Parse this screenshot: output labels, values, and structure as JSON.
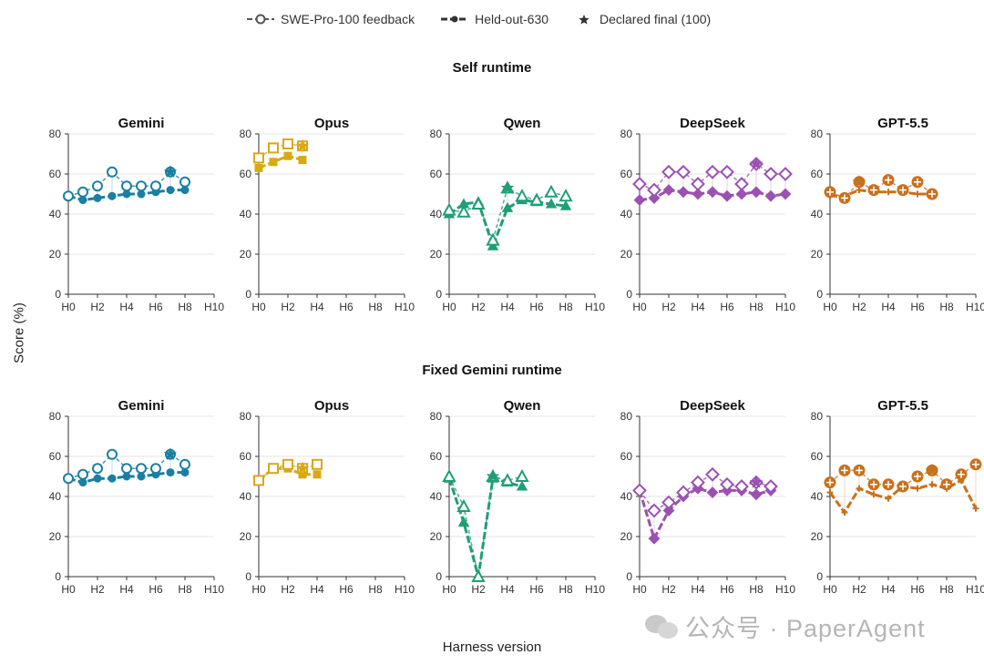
{
  "legend": {
    "feedback": "SWE-Pro-100 feedback",
    "heldout": "Held-out-630",
    "declared": "Declared final (100)"
  },
  "axes": {
    "ylabel": "Score (%)",
    "xlabel": "Harness version"
  },
  "watermark": "公众号 · PaperAgent",
  "colors": {
    "Gemini": "#1a7fa3",
    "Opus": "#d9a817",
    "Qwen": "#1f9e78",
    "DeepSeek": "#9b51b0",
    "GPT-5.5": "#c9701c"
  },
  "chart_data": [
    {
      "type": "line",
      "panel_group": "Self runtime",
      "title": "Gemini",
      "x": [
        "H0",
        "H1",
        "H2",
        "H3",
        "H4",
        "H5",
        "H6",
        "H7",
        "H8"
      ],
      "xticks": [
        "H0",
        "H2",
        "H4",
        "H6",
        "H8",
        "H10"
      ],
      "xlim": [
        0,
        10
      ],
      "ylim": [
        0,
        80
      ],
      "yticks": [
        0,
        20,
        40,
        60,
        80
      ],
      "series": [
        {
          "name": "SWE-Pro-100 feedback",
          "values": [
            49,
            51,
            54,
            61,
            54,
            54,
            54,
            61,
            56
          ]
        },
        {
          "name": "Held-out-630",
          "values": [
            49,
            47,
            48,
            49,
            50,
            50,
            51,
            52,
            52
          ]
        }
      ],
      "declared_final": {
        "x": "H7",
        "y": 61
      }
    },
    {
      "type": "line",
      "panel_group": "Self runtime",
      "title": "Opus",
      "x": [
        "H0",
        "H1",
        "H2",
        "H3"
      ],
      "xticks": [
        "H0",
        "H2",
        "H4",
        "H6",
        "H8",
        "H10"
      ],
      "xlim": [
        0,
        10
      ],
      "ylim": [
        0,
        80
      ],
      "yticks": [
        0,
        20,
        40,
        60,
        80
      ],
      "series": [
        {
          "name": "SWE-Pro-100 feedback",
          "values": [
            68,
            73,
            75,
            74
          ]
        },
        {
          "name": "Held-out-630",
          "values": [
            63,
            66,
            69,
            67
          ]
        }
      ],
      "declared_final": {
        "x": "H3",
        "y": 74
      }
    },
    {
      "type": "line",
      "panel_group": "Self runtime",
      "title": "Qwen",
      "x": [
        "H0",
        "H1",
        "H2",
        "H3",
        "H4",
        "H5",
        "H6",
        "H7",
        "H8"
      ],
      "xticks": [
        "H0",
        "H2",
        "H4",
        "H6",
        "H8",
        "H10"
      ],
      "xlim": [
        0,
        10
      ],
      "ylim": [
        0,
        80
      ],
      "yticks": [
        0,
        20,
        40,
        60,
        80
      ],
      "series": [
        {
          "name": "SWE-Pro-100 feedback",
          "values": [
            42,
            41,
            45,
            27,
            53,
            49,
            47,
            51,
            49
          ]
        },
        {
          "name": "Held-out-630",
          "values": [
            40,
            45,
            46,
            24,
            43,
            47,
            46,
            45,
            44
          ]
        }
      ],
      "declared_final": {
        "x": "H4",
        "y": 53
      }
    },
    {
      "type": "line",
      "panel_group": "Self runtime",
      "title": "DeepSeek",
      "x": [
        "H0",
        "H1",
        "H2",
        "H3",
        "H4",
        "H5",
        "H6",
        "H7",
        "H8",
        "H9",
        "H10"
      ],
      "xticks": [
        "H0",
        "H2",
        "H4",
        "H6",
        "H8",
        "H10"
      ],
      "xlim": [
        0,
        10
      ],
      "ylim": [
        0,
        80
      ],
      "yticks": [
        0,
        20,
        40,
        60,
        80
      ],
      "series": [
        {
          "name": "SWE-Pro-100 feedback",
          "values": [
            55,
            52,
            61,
            61,
            55,
            61,
            61,
            55,
            65,
            60,
            60
          ]
        },
        {
          "name": "Held-out-630",
          "values": [
            47,
            48,
            52,
            51,
            50,
            51,
            49,
            50,
            51,
            49,
            50
          ]
        }
      ],
      "declared_final": {
        "x": "H8",
        "y": 65
      }
    },
    {
      "type": "line",
      "panel_group": "Self runtime",
      "title": "GPT-5.5",
      "x": [
        "H0",
        "H1",
        "H2",
        "H3",
        "H4",
        "H5",
        "H6",
        "H7"
      ],
      "xticks": [
        "H0",
        "H2",
        "H4",
        "H6",
        "H8",
        "H10"
      ],
      "xlim": [
        0,
        10
      ],
      "ylim": [
        0,
        80
      ],
      "yticks": [
        0,
        20,
        40,
        60,
        80
      ],
      "series": [
        {
          "name": "SWE-Pro-100 feedback",
          "values": [
            51,
            48,
            56,
            52,
            57,
            52,
            56,
            50
          ]
        },
        {
          "name": "Held-out-630",
          "values": [
            49,
            49,
            52,
            51,
            51,
            51,
            50,
            50
          ]
        }
      ],
      "declared_final": {
        "x": "H2",
        "y": 56
      }
    },
    {
      "type": "line",
      "panel_group": "Fixed Gemini runtime",
      "title": "Gemini",
      "x": [
        "H0",
        "H1",
        "H2",
        "H3",
        "H4",
        "H5",
        "H6",
        "H7",
        "H8"
      ],
      "xticks": [
        "H0",
        "H2",
        "H4",
        "H6",
        "H8",
        "H10"
      ],
      "xlim": [
        0,
        10
      ],
      "ylim": [
        0,
        80
      ],
      "yticks": [
        0,
        20,
        40,
        60,
        80
      ],
      "series": [
        {
          "name": "SWE-Pro-100 feedback",
          "values": [
            49,
            51,
            54,
            61,
            54,
            54,
            54,
            61,
            56
          ]
        },
        {
          "name": "Held-out-630",
          "values": [
            49,
            47,
            49,
            49,
            50,
            50,
            51,
            52,
            52
          ]
        }
      ],
      "declared_final": {
        "x": "H7",
        "y": 61
      }
    },
    {
      "type": "line",
      "panel_group": "Fixed Gemini runtime",
      "title": "Opus",
      "x": [
        "H0",
        "H1",
        "H2",
        "H3",
        "H4"
      ],
      "xticks": [
        "H0",
        "H2",
        "H4",
        "H6",
        "H8",
        "H10"
      ],
      "xlim": [
        0,
        10
      ],
      "ylim": [
        0,
        80
      ],
      "yticks": [
        0,
        20,
        40,
        60,
        80
      ],
      "series": [
        {
          "name": "SWE-Pro-100 feedback",
          "values": [
            48,
            54,
            56,
            54,
            56
          ]
        },
        {
          "name": "Held-out-630",
          "values": [
            48,
            54,
            54,
            51,
            51
          ]
        }
      ],
      "declared_final": {
        "x": "H3",
        "y": 54
      }
    },
    {
      "type": "line",
      "panel_group": "Fixed Gemini runtime",
      "title": "Qwen",
      "x": [
        "H0",
        "H1",
        "H2",
        "H3",
        "H4",
        "H5"
      ],
      "xticks": [
        "H0",
        "H2",
        "H4",
        "H6",
        "H8",
        "H10"
      ],
      "xlim": [
        0,
        10
      ],
      "ylim": [
        0,
        80
      ],
      "yticks": [
        0,
        20,
        40,
        60,
        80
      ],
      "series": [
        {
          "name": "SWE-Pro-100 feedback",
          "values": [
            50,
            35,
            0,
            50,
            48,
            50
          ]
        },
        {
          "name": "Held-out-630",
          "values": [
            49,
            27,
            0,
            49,
            47,
            45
          ]
        }
      ],
      "declared_final": {
        "x": "H3",
        "y": 50
      }
    },
    {
      "type": "line",
      "panel_group": "Fixed Gemini runtime",
      "title": "DeepSeek",
      "x": [
        "H0",
        "H1",
        "H2",
        "H3",
        "H4",
        "H5",
        "H6",
        "H7",
        "H8",
        "H9"
      ],
      "xticks": [
        "H0",
        "H2",
        "H4",
        "H6",
        "H8",
        "H10"
      ],
      "xlim": [
        0,
        10
      ],
      "ylim": [
        0,
        80
      ],
      "yticks": [
        0,
        20,
        40,
        60,
        80
      ],
      "series": [
        {
          "name": "SWE-Pro-100 feedback",
          "values": [
            43,
            33,
            37,
            42,
            47,
            51,
            46,
            45,
            47,
            45
          ]
        },
        {
          "name": "Held-out-630",
          "values": [
            43,
            19,
            33,
            40,
            44,
            42,
            43,
            43,
            41,
            43
          ]
        }
      ],
      "declared_final": {
        "x": "H8",
        "y": 47
      }
    },
    {
      "type": "line",
      "panel_group": "Fixed Gemini runtime",
      "title": "GPT-5.5",
      "x": [
        "H0",
        "H1",
        "H2",
        "H3",
        "H4",
        "H5",
        "H6",
        "H7",
        "H8",
        "H9",
        "H10"
      ],
      "xticks": [
        "H0",
        "H2",
        "H4",
        "H6",
        "H8",
        "H10"
      ],
      "xlim": [
        0,
        10
      ],
      "ylim": [
        0,
        80
      ],
      "yticks": [
        0,
        20,
        40,
        60,
        80
      ],
      "series": [
        {
          "name": "SWE-Pro-100 feedback",
          "values": [
            47,
            53,
            53,
            46,
            46,
            45,
            50,
            53,
            46,
            51,
            56
          ]
        },
        {
          "name": "Held-out-630",
          "values": [
            42,
            32,
            44,
            41,
            39,
            45,
            44,
            46,
            44,
            48,
            34
          ]
        }
      ],
      "declared_final": {
        "x": "H7",
        "y": 53
      }
    }
  ],
  "row_titles": [
    "Self runtime",
    "Fixed Gemini runtime"
  ]
}
